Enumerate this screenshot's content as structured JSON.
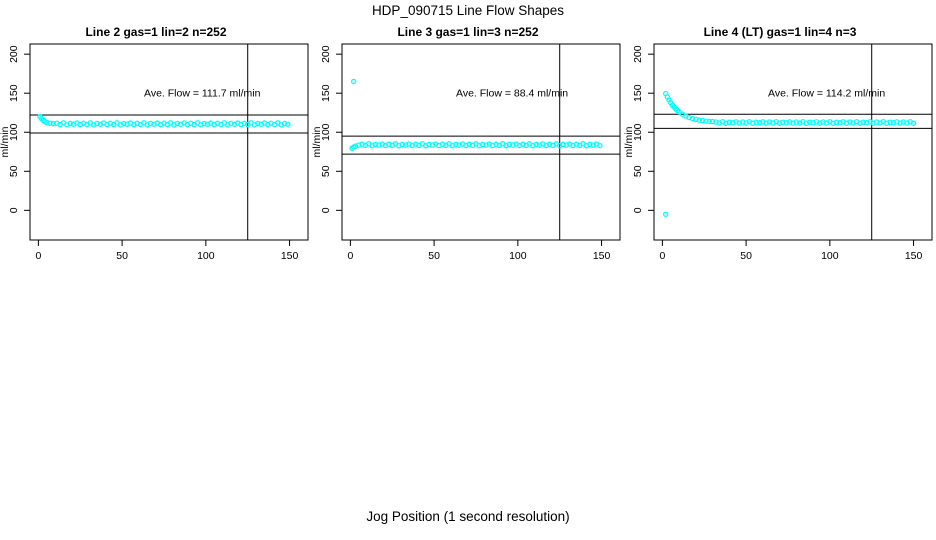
{
  "figure": {
    "title": "HDP_090715  Line Flow Shapes",
    "xlabel": "Jog Position (1 second resolution)",
    "point_color": "#00FFFF",
    "axis_color": "#000000",
    "background": "#FFFFFF"
  },
  "chart_data": [
    {
      "type": "scatter",
      "title": "Line 2 gas=1 lin=2 n=252",
      "annotation": "Ave. Flow =  111.7  ml/min",
      "ave_flow_ml_min": 111.7,
      "ylabel": "ml/min",
      "x_ticks": [
        0,
        50,
        100,
        150
      ],
      "y_ticks": [
        0,
        50,
        100,
        150,
        200
      ],
      "xlim": [
        -5,
        161
      ],
      "ylim": [
        -38,
        213
      ],
      "ref_line_upper": 122,
      "ref_line_lower": 99,
      "vline_x": 125,
      "annotation_y": 150,
      "grid": false,
      "points": [
        [
          1,
          120.0
        ],
        [
          2,
          117.5
        ],
        [
          3,
          115.2
        ],
        [
          4,
          113.6
        ],
        [
          5,
          112.6
        ],
        [
          7,
          111.5
        ],
        [
          9,
          111.0
        ],
        [
          11,
          111.5
        ],
        [
          13,
          109.9
        ],
        [
          15,
          112.0
        ],
        [
          17,
          109.5
        ],
        [
          19,
          111.2
        ],
        [
          21,
          110.3
        ],
        [
          23,
          111.8
        ],
        [
          25,
          109.7
        ],
        [
          27,
          111.5
        ],
        [
          29,
          109.9
        ],
        [
          31,
          112.0
        ],
        [
          33,
          109.5
        ],
        [
          35,
          111.2
        ],
        [
          37,
          110.3
        ],
        [
          39,
          111.8
        ],
        [
          41,
          109.7
        ],
        [
          43,
          111.5
        ],
        [
          45,
          109.9
        ],
        [
          47,
          112.0
        ],
        [
          49,
          109.5
        ],
        [
          51,
          111.2
        ],
        [
          53,
          110.3
        ],
        [
          55,
          111.8
        ],
        [
          57,
          109.7
        ],
        [
          59,
          111.5
        ],
        [
          61,
          109.9
        ],
        [
          63,
          112.0
        ],
        [
          65,
          109.5
        ],
        [
          67,
          111.2
        ],
        [
          69,
          110.3
        ],
        [
          71,
          111.8
        ],
        [
          73,
          109.7
        ],
        [
          75,
          111.5
        ],
        [
          77,
          109.9
        ],
        [
          79,
          112.0
        ],
        [
          81,
          109.5
        ],
        [
          83,
          111.2
        ],
        [
          85,
          110.3
        ],
        [
          87,
          111.8
        ],
        [
          89,
          109.7
        ],
        [
          91,
          111.5
        ],
        [
          93,
          109.9
        ],
        [
          95,
          112.0
        ],
        [
          97,
          109.5
        ],
        [
          99,
          111.2
        ],
        [
          101,
          110.3
        ],
        [
          103,
          111.8
        ],
        [
          105,
          109.7
        ],
        [
          107,
          111.5
        ],
        [
          109,
          109.9
        ],
        [
          111,
          112.0
        ],
        [
          113,
          109.5
        ],
        [
          115,
          111.2
        ],
        [
          117,
          110.3
        ],
        [
          119,
          111.8
        ],
        [
          121,
          109.7
        ],
        [
          123,
          111.5
        ],
        [
          125,
          109.9
        ],
        [
          127,
          112.0
        ],
        [
          129,
          109.5
        ],
        [
          131,
          111.2
        ],
        [
          133,
          110.3
        ],
        [
          135,
          111.8
        ],
        [
          137,
          109.7
        ],
        [
          139,
          111.5
        ],
        [
          141,
          109.9
        ],
        [
          143,
          112.0
        ],
        [
          145,
          109.5
        ],
        [
          147,
          111.2
        ],
        [
          149,
          110.3
        ]
      ],
      "outliers": []
    },
    {
      "type": "scatter",
      "title": "Line 3 gas=1 lin=3 n=252",
      "annotation": "Ave. Flow =  88.4  ml/min",
      "ave_flow_ml_min": 88.4,
      "ylabel": "ml/min",
      "x_ticks": [
        0,
        50,
        100,
        150
      ],
      "y_ticks": [
        0,
        50,
        100,
        150,
        200
      ],
      "xlim": [
        -5,
        161
      ],
      "ylim": [
        -38,
        213
      ],
      "ref_line_upper": 95,
      "ref_line_lower": 72,
      "vline_x": 125,
      "annotation_y": 150,
      "grid": false,
      "points": [
        [
          1,
          79.5
        ],
        [
          2,
          81.0
        ],
        [
          3,
          82.2
        ],
        [
          5,
          83.5
        ],
        [
          7,
          84.7
        ],
        [
          9,
          83.1
        ],
        [
          11,
          85.2
        ],
        [
          13,
          82.7
        ],
        [
          15,
          84.4
        ],
        [
          17,
          83.5
        ],
        [
          19,
          85.0
        ],
        [
          21,
          82.9
        ],
        [
          23,
          84.7
        ],
        [
          25,
          83.1
        ],
        [
          27,
          85.2
        ],
        [
          29,
          82.7
        ],
        [
          31,
          84.4
        ],
        [
          33,
          83.5
        ],
        [
          35,
          85.0
        ],
        [
          37,
          82.9
        ],
        [
          39,
          84.7
        ],
        [
          41,
          83.1
        ],
        [
          43,
          85.2
        ],
        [
          45,
          82.7
        ],
        [
          47,
          84.4
        ],
        [
          49,
          83.5
        ],
        [
          51,
          85.0
        ],
        [
          53,
          82.9
        ],
        [
          55,
          84.7
        ],
        [
          57,
          83.1
        ],
        [
          59,
          85.2
        ],
        [
          61,
          82.7
        ],
        [
          63,
          84.4
        ],
        [
          65,
          83.5
        ],
        [
          67,
          85.0
        ],
        [
          69,
          82.9
        ],
        [
          71,
          84.7
        ],
        [
          73,
          83.1
        ],
        [
          75,
          85.2
        ],
        [
          77,
          82.7
        ],
        [
          79,
          84.4
        ],
        [
          81,
          83.5
        ],
        [
          83,
          85.0
        ],
        [
          85,
          82.9
        ],
        [
          87,
          84.7
        ],
        [
          89,
          83.1
        ],
        [
          91,
          85.2
        ],
        [
          93,
          82.7
        ],
        [
          95,
          84.4
        ],
        [
          97,
          83.5
        ],
        [
          99,
          85.0
        ],
        [
          101,
          82.9
        ],
        [
          103,
          84.7
        ],
        [
          105,
          83.1
        ],
        [
          107,
          85.2
        ],
        [
          109,
          82.7
        ],
        [
          111,
          84.4
        ],
        [
          113,
          83.5
        ],
        [
          115,
          85.0
        ],
        [
          117,
          82.9
        ],
        [
          119,
          84.7
        ],
        [
          121,
          83.1
        ],
        [
          123,
          85.2
        ],
        [
          125,
          82.7
        ],
        [
          127,
          84.4
        ],
        [
          129,
          83.5
        ],
        [
          131,
          85.0
        ],
        [
          133,
          82.9
        ],
        [
          135,
          84.7
        ],
        [
          137,
          83.1
        ],
        [
          139,
          85.2
        ],
        [
          141,
          82.7
        ],
        [
          143,
          84.4
        ],
        [
          145,
          83.5
        ],
        [
          147,
          85.0
        ],
        [
          149,
          82.9
        ]
      ],
      "outliers": [
        [
          2,
          165
        ]
      ]
    },
    {
      "type": "scatter",
      "title": "Line 4 (LT) gas=1 lin=4 n=3",
      "annotation": "Ave. Flow =  114.2  ml/min",
      "ave_flow_ml_min": 114.2,
      "ylabel": "ml/min",
      "x_ticks": [
        0,
        50,
        100,
        150
      ],
      "y_ticks": [
        0,
        50,
        100,
        150,
        200
      ],
      "xlim": [
        -5,
        161
      ],
      "ylim": [
        -38,
        213
      ],
      "ref_line_upper": 123,
      "ref_line_lower": 105,
      "vline_x": 125,
      "annotation_y": 150,
      "grid": false,
      "points": [
        [
          2,
          149.5
        ],
        [
          3,
          145.2
        ],
        [
          4,
          141.3
        ],
        [
          5,
          137.9
        ],
        [
          6,
          134.8
        ],
        [
          7,
          132.2
        ],
        [
          8,
          129.9
        ],
        [
          9,
          127.9
        ],
        [
          10,
          126.1
        ],
        [
          12,
          123.1
        ],
        [
          14,
          120.8
        ],
        [
          16,
          118.9
        ],
        [
          18,
          117.5
        ],
        [
          20,
          116.4
        ],
        [
          22,
          115.5
        ],
        [
          24,
          114.9
        ],
        [
          26,
          114.3
        ],
        [
          28,
          113.9
        ],
        [
          30,
          113.6
        ],
        [
          32,
          113.1
        ],
        [
          34,
          111.8
        ],
        [
          36,
          113.5
        ],
        [
          38,
          111.5
        ],
        [
          40,
          112.8
        ],
        [
          42,
          112.1
        ],
        [
          44,
          113.3
        ],
        [
          46,
          111.6
        ],
        [
          48,
          113.1
        ],
        [
          50,
          111.8
        ],
        [
          52,
          113.5
        ],
        [
          54,
          111.5
        ],
        [
          56,
          112.8
        ],
        [
          58,
          112.1
        ],
        [
          60,
          113.3
        ],
        [
          62,
          111.6
        ],
        [
          64,
          113.1
        ],
        [
          66,
          111.8
        ],
        [
          68,
          113.5
        ],
        [
          70,
          111.5
        ],
        [
          72,
          112.8
        ],
        [
          74,
          112.1
        ],
        [
          76,
          113.3
        ],
        [
          78,
          111.6
        ],
        [
          80,
          113.1
        ],
        [
          82,
          111.8
        ],
        [
          84,
          113.5
        ],
        [
          86,
          111.5
        ],
        [
          88,
          112.8
        ],
        [
          90,
          112.1
        ],
        [
          92,
          113.3
        ],
        [
          94,
          111.6
        ],
        [
          96,
          113.1
        ],
        [
          98,
          111.8
        ],
        [
          100,
          113.5
        ],
        [
          102,
          111.5
        ],
        [
          104,
          112.8
        ],
        [
          106,
          112.1
        ],
        [
          108,
          113.3
        ],
        [
          110,
          111.6
        ],
        [
          112,
          113.1
        ],
        [
          114,
          111.8
        ],
        [
          116,
          113.5
        ],
        [
          118,
          111.5
        ],
        [
          120,
          112.8
        ],
        [
          122,
          112.1
        ],
        [
          124,
          113.3
        ],
        [
          126,
          111.6
        ],
        [
          128,
          113.1
        ],
        [
          130,
          111.8
        ],
        [
          132,
          113.5
        ],
        [
          134,
          111.5
        ],
        [
          136,
          112.8
        ],
        [
          138,
          112.1
        ],
        [
          140,
          113.3
        ],
        [
          142,
          111.6
        ],
        [
          144,
          113.1
        ],
        [
          146,
          111.8
        ],
        [
          148,
          113.5
        ],
        [
          150,
          111.5
        ]
      ],
      "outliers": [
        [
          2,
          -5
        ]
      ]
    }
  ]
}
